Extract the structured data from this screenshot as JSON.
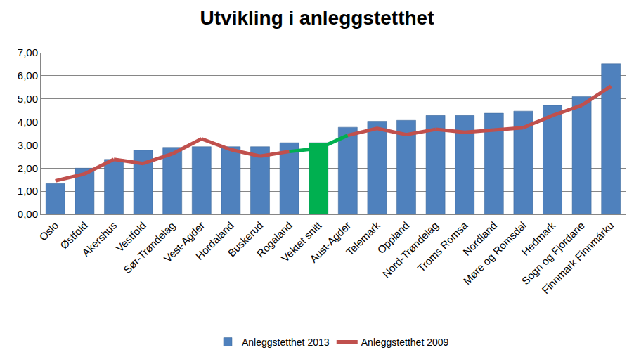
{
  "chart_data": {
    "type": "bar",
    "title": "Utvikling i anleggstetthet",
    "categories": [
      "Oslo",
      "Østfold",
      "Akershus",
      "Vestfold",
      "Sør-Trøndelag",
      "Vest-Agder",
      "Hordaland",
      "Buskerud",
      "Rogaland",
      "Vektet snitt",
      "Aust-Agder",
      "Telemark",
      "Oppland",
      "Nord-Trøndelag",
      "Troms Romsa",
      "Nordland",
      "Møre og Romsdal",
      "Hedmark",
      "Sogn og Fjordane",
      "Finnmark Finnmárku"
    ],
    "series": [
      {
        "name": "Anleggstetthet 2013",
        "type": "bar",
        "color": "#4f81bd",
        "colors": [
          "#4f81bd",
          "#4f81bd",
          "#4f81bd",
          "#4f81bd",
          "#4f81bd",
          "#4f81bd",
          "#4f81bd",
          "#4f81bd",
          "#4f81bd",
          "#00b050",
          "#4f81bd",
          "#4f81bd",
          "#4f81bd",
          "#4f81bd",
          "#4f81bd",
          "#4f81bd",
          "#4f81bd",
          "#4f81bd",
          "#4f81bd",
          "#4f81bd"
        ],
        "values": [
          1.33,
          2.0,
          2.38,
          2.78,
          2.9,
          2.93,
          2.93,
          2.93,
          3.1,
          3.1,
          3.77,
          4.03,
          4.07,
          4.28,
          4.28,
          4.38,
          4.47,
          4.72,
          5.1,
          6.52
        ]
      },
      {
        "name": "Anleggstetthet 2009",
        "type": "line",
        "color": "#c0504d",
        "colors": [
          "#c0504d",
          "#c0504d",
          "#c0504d",
          "#c0504d",
          "#c0504d",
          "#c0504d",
          "#c0504d",
          "#c0504d",
          "#c0504d",
          "#00b050",
          "#c0504d",
          "#c0504d",
          "#c0504d",
          "#c0504d",
          "#c0504d",
          "#c0504d",
          "#c0504d",
          "#c0504d",
          "#c0504d",
          "#c0504d"
        ],
        "values": [
          1.45,
          1.75,
          2.38,
          2.2,
          2.62,
          3.27,
          2.8,
          2.52,
          2.72,
          2.85,
          3.42,
          3.72,
          3.45,
          3.68,
          3.55,
          3.65,
          3.75,
          4.28,
          4.72,
          5.55
        ]
      }
    ],
    "ylim": [
      0,
      7
    ],
    "yticks": [
      {
        "value": 0,
        "label": "0,00"
      },
      {
        "value": 1,
        "label": "1,00"
      },
      {
        "value": 2,
        "label": "2,00"
      },
      {
        "value": 3,
        "label": "3,00"
      },
      {
        "value": 4,
        "label": "4,00"
      },
      {
        "value": 5,
        "label": "5,00"
      },
      {
        "value": 6,
        "label": "6,00"
      },
      {
        "value": 7,
        "label": "7,00"
      }
    ],
    "grid": true,
    "legend": "bottom"
  }
}
